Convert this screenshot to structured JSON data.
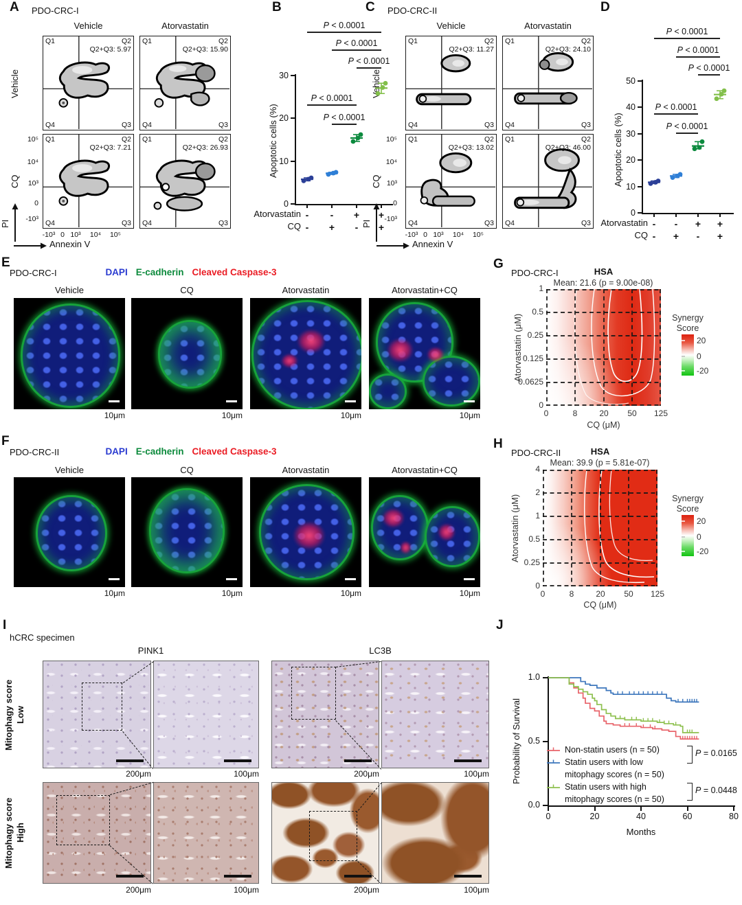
{
  "figure": {
    "panelA": {
      "letter": "A",
      "title": "PDO-CRC-I",
      "cols": [
        "Vehicle",
        "Atorvastatin"
      ],
      "rows": [
        "Vehicle",
        "CQ"
      ],
      "quadrants": {
        "q1": "Q1",
        "q2": "Q2",
        "q3": "Q3",
        "q4": "Q4"
      },
      "plots": [
        {
          "value": "Q2+Q3: 5.97",
          "blob": "a1"
        },
        {
          "value": "Q2+Q3: 15.90",
          "blob": "a2"
        },
        {
          "value": "Q2+Q3: 7.21",
          "blob": "a3"
        },
        {
          "value": "Q2+Q3: 26.93",
          "blob": "a4"
        }
      ],
      "yticks": [
        "10⁵",
        "10⁴",
        "10³",
        "0",
        "-10³"
      ],
      "xticks": [
        "-10³",
        "0",
        "10³",
        "10⁴",
        "10⁵"
      ],
      "ylabel": "PI",
      "xlabel": "Annexin V"
    },
    "panelC": {
      "letter": "C",
      "title": "PDO-CRC-II",
      "cols": [
        "Vehicle",
        "Atorvastatin"
      ],
      "rows": [
        "Vehicle",
        "CQ"
      ],
      "quadrants": {
        "q1": "Q1",
        "q2": "Q2",
        "q3": "Q3",
        "q4": "Q4"
      },
      "plots": [
        {
          "value": "Q2+Q3: 11.27",
          "blob": "c1"
        },
        {
          "value": "Q2+Q3: 24.10",
          "blob": "c2"
        },
        {
          "value": "Q2+Q3: 13.02",
          "blob": "c3"
        },
        {
          "value": "Q2+Q3: 46.00",
          "blob": "c4"
        }
      ],
      "yticks": [
        "10⁵",
        "10⁴",
        "10³",
        "0",
        "-10³"
      ],
      "xticks": [
        "-10³",
        "0",
        "10³",
        "10⁴",
        "10⁵"
      ],
      "ylabel": "PI",
      "xlabel": "Annexin V"
    },
    "panelB": {
      "letter": "B"
    },
    "panelD": {
      "letter": "D"
    },
    "panelE": {
      "letter": "E",
      "title": "PDO-CRC-I",
      "stains": [
        {
          "label": "DAPI",
          "color": "#2a3bd0"
        },
        {
          "label": "E-cadherin",
          "color": "#0c8a3c"
        },
        {
          "label": "Cleaved Caspase-3",
          "color": "#ea1c24"
        }
      ],
      "cols": [
        "Vehicle",
        "CQ",
        "Atorvastatin",
        "Atorvastatin+CQ"
      ],
      "scale_label": "10μm"
    },
    "panelF": {
      "letter": "F",
      "title": "PDO-CRC-II",
      "stains": [
        {
          "label": "DAPI",
          "color": "#2a3bd0"
        },
        {
          "label": "E-cadherin",
          "color": "#0c8a3c"
        },
        {
          "label": "Cleaved Caspase-3",
          "color": "#ea1c24"
        }
      ],
      "cols": [
        "Vehicle",
        "CQ",
        "Atorvastatin",
        "Atorvastatin+CQ"
      ],
      "scale_label": "10μm"
    },
    "panelG": {
      "letter": "G",
      "title": "PDO-CRC-I"
    },
    "panelH": {
      "letter": "H",
      "title": "PDO-CRC-II"
    },
    "panelI": {
      "letter": "I",
      "title": "hCRC specimen",
      "cols": [
        "PINK1",
        "LC3B"
      ],
      "row_labels": [
        {
          "line1": "Mitophagy score",
          "line2": "Low"
        },
        {
          "line1": "Mitophagy score",
          "line2": "High"
        }
      ],
      "scale_overview": "200μm",
      "scale_inset": "100μm"
    },
    "panelJ": {
      "letter": "J"
    }
  },
  "chart_data": [
    {
      "panel": "B",
      "type": "scatter",
      "ylabel": "Apoptotic cells (%)",
      "ylim": [
        0,
        30
      ],
      "yticks": [
        0,
        10,
        20,
        30
      ],
      "factor_rows": [
        {
          "label": "Atorvastatin",
          "signs": [
            "-",
            "-",
            "+",
            "+"
          ]
        },
        {
          "label": "CQ",
          "signs": [
            "-",
            "+",
            "-",
            "+"
          ]
        }
      ],
      "groups": [
        {
          "atorvastatin": "-",
          "cq": "-",
          "color": "#2b3f97",
          "values": [
            5.4,
            5.8,
            6.1
          ]
        },
        {
          "atorvastatin": "-",
          "cq": "+",
          "color": "#2f7fd6",
          "values": [
            6.9,
            7.2,
            7.4
          ]
        },
        {
          "atorvastatin": "+",
          "cq": "-",
          "color": "#0c8a3e",
          "values": [
            14.6,
            15.4,
            16.2
          ]
        },
        {
          "atorvastatin": "+",
          "cq": "+",
          "color": "#82bf4a",
          "values": [
            25.8,
            27.2,
            28.2
          ]
        }
      ],
      "comparisons": [
        {
          "label": "P < 0.0001",
          "from": 0,
          "to": 3
        },
        {
          "label": "P < 0.0001",
          "from": 1,
          "to": 3
        },
        {
          "label": "P < 0.0001",
          "from": 2,
          "to": 3
        },
        {
          "label": "P < 0.0001",
          "from": 0,
          "to": 2
        },
        {
          "label": "P < 0.0001",
          "from": 1,
          "to": 2
        }
      ]
    },
    {
      "panel": "D",
      "type": "scatter",
      "ylabel": "Apoptotic cells (%)",
      "ylim": [
        0,
        50
      ],
      "yticks": [
        0,
        10,
        20,
        30,
        40,
        50
      ],
      "factor_rows": [
        {
          "label": "Atorvastatin",
          "signs": [
            "-",
            "-",
            "+",
            "+"
          ]
        },
        {
          "label": "CQ",
          "signs": [
            "-",
            "+",
            "-",
            "+"
          ]
        }
      ],
      "groups": [
        {
          "atorvastatin": "-",
          "cq": "-",
          "color": "#2b3f97",
          "values": [
            11.1,
            11.6,
            12.1
          ]
        },
        {
          "atorvastatin": "-",
          "cq": "+",
          "color": "#2f7fd6",
          "values": [
            13.4,
            14.0,
            14.6
          ]
        },
        {
          "atorvastatin": "+",
          "cq": "-",
          "color": "#0c8a3e",
          "values": [
            24.3,
            24.8,
            27.0
          ]
        },
        {
          "atorvastatin": "+",
          "cq": "+",
          "color": "#82bf4a",
          "values": [
            43.3,
            45.0,
            46.3
          ]
        }
      ],
      "comparisons": [
        {
          "label": "P < 0.0001",
          "from": 0,
          "to": 3
        },
        {
          "label": "P < 0.0001",
          "from": 1,
          "to": 3
        },
        {
          "label": "P < 0.0001",
          "from": 2,
          "to": 3
        },
        {
          "label": "P < 0.0001",
          "from": 0,
          "to": 2
        },
        {
          "label": "P < 0.0001",
          "from": 1,
          "to": 2
        }
      ]
    },
    {
      "panel": "G",
      "type": "heatmap",
      "sample": "PDO-CRC-I",
      "title": "HSA",
      "subtitle": "Mean: 21.6 (p = 9.00e-08)",
      "mean_synergy": 21.6,
      "p_value": "9.00e-08",
      "xlabel": "CQ (μM)",
      "ylabel": "Atorvastatin (μM)",
      "xticks": [
        "0",
        "8",
        "20",
        "50",
        "125"
      ],
      "yticks": [
        "1",
        "0.5",
        "0.25",
        "0.125",
        "0.0625",
        "0"
      ],
      "colorbar": {
        "title_lines": [
          "Synergy",
          "Score"
        ],
        "tick_labels": [
          "20",
          "0",
          "-20"
        ],
        "max_color": "#dd2110",
        "min_color": "#12c412"
      }
    },
    {
      "panel": "H",
      "type": "heatmap",
      "sample": "PDO-CRC-II",
      "title": "HSA",
      "subtitle": "Mean: 39.9 (p = 5.81e-07)",
      "mean_synergy": 39.9,
      "p_value": "5.81e-07",
      "xlabel": "CQ (μM)",
      "ylabel": "Atorvastatin (μM)",
      "xticks": [
        "0",
        "8",
        "20",
        "50",
        "125"
      ],
      "yticks": [
        "4",
        "2",
        "1",
        "0.5",
        "0.25",
        "0"
      ],
      "colorbar": {
        "title_lines": [
          "Synergy",
          "Score"
        ],
        "tick_labels": [
          "20",
          "0",
          "-20"
        ],
        "max_color": "#dd2110",
        "min_color": "#12c412"
      }
    },
    {
      "panel": "J",
      "type": "line",
      "subtype": "kaplan-meier",
      "xlabel": "Months",
      "ylabel": "Probability of Survival",
      "xticks": [
        0,
        20,
        40,
        60,
        80
      ],
      "yticks": [
        "1.0",
        "0.5",
        "0.0"
      ],
      "xlim": [
        0,
        80
      ],
      "ylim": [
        0,
        1
      ],
      "series": [
        {
          "name": "Non-statin users (n = 50)",
          "color": "#e8636a",
          "steps": [
            [
              0,
              1
            ],
            [
              8,
              1
            ],
            [
              9,
              0.96
            ],
            [
              11,
              0.92
            ],
            [
              13,
              0.88
            ],
            [
              15,
              0.84
            ],
            [
              16,
              0.8
            ],
            [
              18,
              0.76
            ],
            [
              20,
              0.74
            ],
            [
              22,
              0.7
            ],
            [
              24,
              0.66
            ],
            [
              25,
              0.64
            ],
            [
              28,
              0.63
            ],
            [
              31,
              0.62
            ],
            [
              40,
              0.61
            ],
            [
              45,
              0.6
            ],
            [
              49,
              0.59
            ],
            [
              52,
              0.58
            ],
            [
              55,
              0.54
            ],
            [
              57,
              0.52
            ],
            [
              65,
              0.52
            ]
          ],
          "censors": [
            33,
            35,
            38,
            41,
            44,
            46,
            58,
            59,
            60,
            61,
            62,
            63,
            64
          ]
        },
        {
          "name": "Statin users with low mitophagy scores (n = 50)",
          "color": "#3c76bc",
          "steps": [
            [
              0,
              1
            ],
            [
              13,
              1
            ],
            [
              14,
              0.97
            ],
            [
              16,
              0.95
            ],
            [
              18,
              0.94
            ],
            [
              21,
              0.92
            ],
            [
              25,
              0.9
            ],
            [
              27,
              0.88
            ],
            [
              28,
              0.87
            ],
            [
              50,
              0.87
            ],
            [
              51,
              0.84
            ],
            [
              53,
              0.82
            ],
            [
              55,
              0.81
            ],
            [
              65,
              0.81
            ]
          ],
          "censors": [
            30,
            32,
            35,
            37,
            39,
            41,
            43,
            45,
            47,
            49,
            56,
            58,
            60,
            61,
            62,
            63,
            64
          ]
        },
        {
          "name": "Statin users with high mitophagy scores (n = 50)",
          "color": "#8ec04f",
          "steps": [
            [
              0,
              1
            ],
            [
              8,
              1
            ],
            [
              9,
              0.95
            ],
            [
              11,
              0.93
            ],
            [
              13,
              0.91
            ],
            [
              15,
              0.89
            ],
            [
              17,
              0.87
            ],
            [
              19,
              0.84
            ],
            [
              20,
              0.82
            ],
            [
              21,
              0.79
            ],
            [
              23,
              0.75
            ],
            [
              25,
              0.72
            ],
            [
              27,
              0.7
            ],
            [
              29,
              0.68
            ],
            [
              33,
              0.67
            ],
            [
              40,
              0.66
            ],
            [
              44,
              0.66
            ],
            [
              47,
              0.65
            ],
            [
              50,
              0.64
            ],
            [
              54,
              0.63
            ],
            [
              57,
              0.62
            ],
            [
              58,
              0.57
            ],
            [
              65,
              0.57
            ]
          ],
          "censors": [
            31,
            33,
            36,
            38,
            41,
            43,
            45,
            48,
            50,
            52,
            55,
            60,
            61,
            62
          ]
        }
      ],
      "legend_lines": [
        [
          "Non-statin users (n = 50)"
        ],
        [
          "Statin users with low",
          "mitophagy scores (n = 50)"
        ],
        [
          "Statin users with high",
          "mitophagy scores (n = 50)"
        ]
      ],
      "comparisons": [
        {
          "label": "P = 0.0165"
        },
        {
          "label": "P = 0.0448"
        }
      ]
    }
  ]
}
